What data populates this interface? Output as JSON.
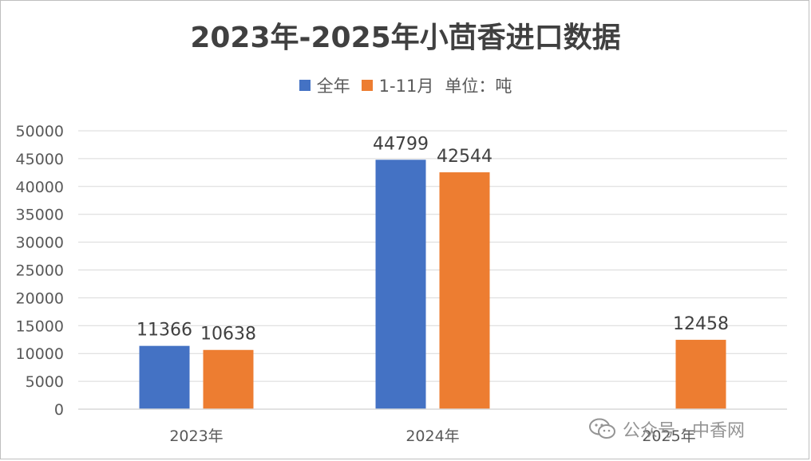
{
  "chart_data": {
    "type": "bar",
    "title": "2023年-2025年小茴香进口数据",
    "categories": [
      "2023年",
      "2024年",
      "2025年"
    ],
    "series": [
      {
        "name": "全年",
        "values": [
          11366,
          44799,
          null
        ],
        "color": "#4472C4"
      },
      {
        "name": "1-11月",
        "values": [
          10638,
          42544,
          12458
        ],
        "color": "#ED7D31"
      }
    ],
    "legend_suffix": "单位：吨",
    "legend_position": "top",
    "ylim": [
      0,
      50000
    ],
    "yticks": [
      0,
      5000,
      10000,
      15000,
      20000,
      25000,
      30000,
      35000,
      40000,
      45000,
      50000
    ],
    "grid": true,
    "data_labels": true,
    "xlabel": "",
    "ylabel": ""
  },
  "watermark": {
    "text": "公众号 · 中香网",
    "icon": "wechat-icon"
  }
}
